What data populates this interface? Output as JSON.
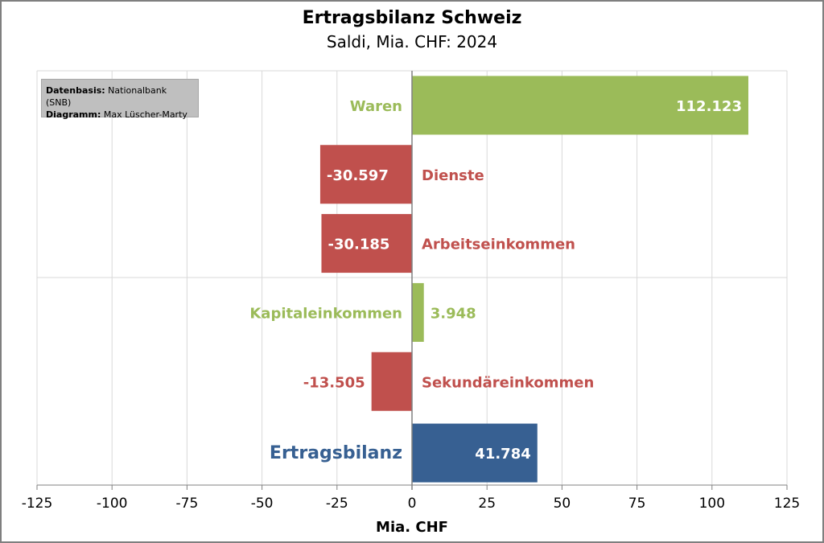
{
  "chart_data": {
    "type": "bar",
    "orientation": "horizontal",
    "title": "Ertragsbilanz Schweiz",
    "subtitle": "Saldi, Mia. CHF: 2024",
    "xlabel": "Mia. CHF",
    "xlim": [
      -125,
      125
    ],
    "xticks": [
      -125,
      -100,
      -75,
      -50,
      -25,
      0,
      25,
      50,
      75,
      100,
      125
    ],
    "grid": true,
    "categories": [
      "Waren",
      "Dienste",
      "Arbeitseinkommen",
      "Kapitaleinkommen",
      "Sekundäreinkommen",
      "Ertragsbilanz"
    ],
    "values": [
      112.123,
      -30.597,
      -30.185,
      3.948,
      -13.505,
      41.784
    ],
    "value_labels": [
      "112.123",
      "-30.597",
      "-30.185",
      "3.948",
      "-13.505",
      "41.784"
    ],
    "colors": [
      "#9bbb59",
      "#c0504d",
      "#c0504d",
      "#9bbb59",
      "#c0504d",
      "#376092"
    ],
    "source": {
      "line1_label": "Datenbasis:",
      "line1_value": " Nationalbank (SNB)",
      "line2_label": "Diagramm:",
      "line2_value": " Max Lüscher-Marty"
    }
  }
}
